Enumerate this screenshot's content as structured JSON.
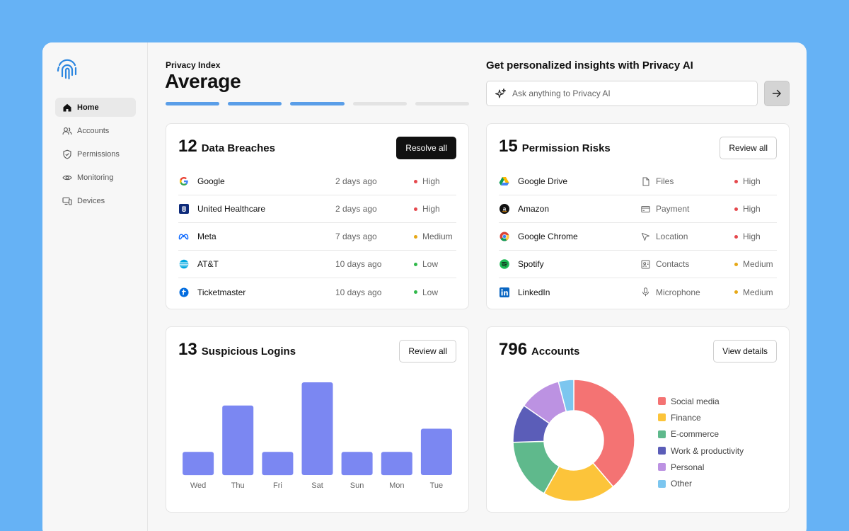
{
  "sidebar": {
    "items": [
      {
        "label": "Home",
        "icon": "home-icon",
        "active": true
      },
      {
        "label": "Accounts",
        "icon": "users-icon",
        "active": false
      },
      {
        "label": "Permissions",
        "icon": "shield-check-icon",
        "active": false
      },
      {
        "label": "Monitoring",
        "icon": "eye-icon",
        "active": false
      },
      {
        "label": "Devices",
        "icon": "devices-icon",
        "active": false
      }
    ]
  },
  "privacy_index": {
    "label": "Privacy Index",
    "value": "Average",
    "level_filled": 3,
    "level_total": 5
  },
  "ai": {
    "title": "Get personalized insights with Privacy AI",
    "placeholder": "Ask anything to Privacy AI"
  },
  "breaches": {
    "count": "12",
    "title": "Data Breaches",
    "button": "Resolve all",
    "rows": [
      {
        "name": "Google",
        "icon": "google-logo-icon",
        "time": "2 days ago",
        "severity": "High"
      },
      {
        "name": "United Healthcare",
        "icon": "united-healthcare-logo-icon",
        "time": "2 days ago",
        "severity": "High"
      },
      {
        "name": "Meta",
        "icon": "meta-logo-icon",
        "time": "7 days ago",
        "severity": "Medium"
      },
      {
        "name": "AT&T",
        "icon": "att-logo-icon",
        "time": "10 days ago",
        "severity": "Low"
      },
      {
        "name": "Ticketmaster",
        "icon": "ticketmaster-logo-icon",
        "time": "10 days ago",
        "severity": "Low"
      }
    ]
  },
  "permissions": {
    "count": "15",
    "title": "Permission Risks",
    "button": "Review all",
    "rows": [
      {
        "name": "Google Drive",
        "icon": "google-drive-logo-icon",
        "perm": "Files",
        "perm_icon": "file-icon",
        "severity": "High"
      },
      {
        "name": "Amazon",
        "icon": "amazon-logo-icon",
        "perm": "Payment",
        "perm_icon": "credit-card-icon",
        "severity": "High"
      },
      {
        "name": "Google Chrome",
        "icon": "chrome-logo-icon",
        "perm": "Location",
        "perm_icon": "location-arrow-icon",
        "severity": "High"
      },
      {
        "name": "Spotify",
        "icon": "spotify-logo-icon",
        "perm": "Contacts",
        "perm_icon": "contacts-icon",
        "severity": "Medium"
      },
      {
        "name": "LinkedIn",
        "icon": "linkedin-logo-icon",
        "perm": "Microphone",
        "perm_icon": "microphone-icon",
        "severity": "Medium"
      }
    ]
  },
  "logins": {
    "count": "13",
    "title": "Suspicious Logins",
    "button": "Review all"
  },
  "accounts": {
    "count": "796",
    "title": "Accounts",
    "button": "View details"
  },
  "severity_colors": {
    "High": "#e5484d",
    "Medium": "#e6a817",
    "Low": "#30b84a"
  },
  "chart_data": [
    {
      "type": "bar",
      "categories": [
        "Wed",
        "Thu",
        "Fri",
        "Sat",
        "Sun",
        "Mon",
        "Tue"
      ],
      "values": [
        1,
        3,
        1,
        4,
        1,
        1,
        2
      ],
      "ylim": [
        0,
        4
      ],
      "color": "#7b87f2",
      "grid": false
    },
    {
      "type": "pie",
      "donut": true,
      "labels": [
        "Social media",
        "Finance",
        "E-commerce",
        "Work & productivity",
        "Personal",
        "Other"
      ],
      "values": [
        38,
        19,
        16,
        10,
        11,
        4
      ],
      "colors": [
        "#f47373",
        "#fcc43a",
        "#5fb98c",
        "#5b5db8",
        "#bc92e2",
        "#7cc6ef"
      ],
      "legend": "right"
    }
  ]
}
